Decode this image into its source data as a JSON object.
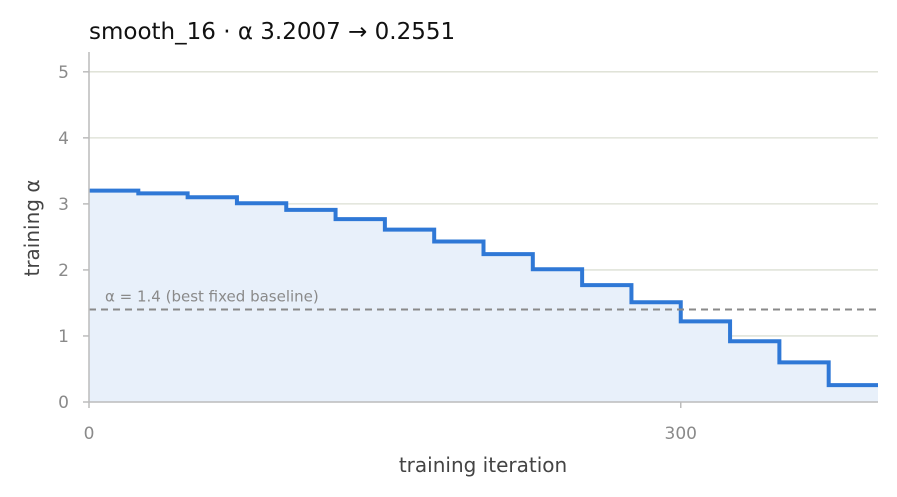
{
  "chart_data": {
    "type": "line",
    "title": "smooth_16   ·   α 3.2007 → 0.2551",
    "xlabel": "training iteration",
    "ylabel": "training α",
    "xlim": [
      0,
      400
    ],
    "ylim": [
      0,
      5.3
    ],
    "x_ticks": [
      0,
      300
    ],
    "y_ticks": [
      0,
      1,
      2,
      3,
      4,
      5
    ],
    "grid": "horizontal",
    "step_width": 25,
    "series": [
      {
        "color": "#2f78d6",
        "fill": "#e8f0fa",
        "step_starts": [
          0,
          25,
          50,
          75,
          100,
          125,
          150,
          175,
          200,
          225,
          250,
          275,
          300,
          325,
          350,
          375
        ],
        "values": [
          3.2007,
          3.16,
          3.1,
          3.01,
          2.91,
          2.77,
          2.61,
          2.43,
          2.24,
          2.01,
          1.77,
          1.51,
          1.22,
          0.92,
          0.6,
          0.2551
        ]
      }
    ],
    "reference_line": {
      "y": 1.4,
      "label": "α = 1.4 (best fixed baseline)",
      "color": "#8a8a8a",
      "style": "dashed"
    }
  }
}
